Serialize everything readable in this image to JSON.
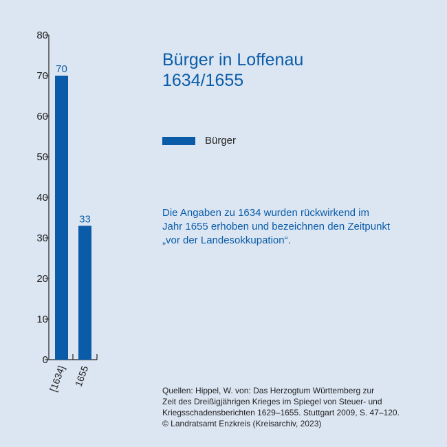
{
  "colors": {
    "background": "#dce6f2",
    "bar": "#0a5ca8",
    "title": "#0a5ca8",
    "axis": "#222222"
  },
  "title_lines": [
    "Bürger in Loffenau",
    "1634/1655"
  ],
  "legend": {
    "label": "Bürger"
  },
  "note_lines": [
    "Die Angaben zu 1634 wurden rückwirkend im",
    "Jahr 1655 erhoben und bezeichnen den Zeitpunkt",
    "„vor der Landesokkupation“."
  ],
  "source_lines": [
    "Quellen: Hippel, W. von: Das Herzogtum Württemberg zur",
    "Zeit des Dreißigjährigen Krieges im Spiegel von Steuer- und",
    "Kriegsschadensberichten 1629–1655. Stuttgart 2009, S. 47–120.",
    "© Landratsamt Enzkreis (Kreisarchiv, 2023)"
  ],
  "chart_data": {
    "type": "bar",
    "title": "Bürger in Loffenau 1634/1655",
    "categories": [
      "[1634]",
      "1655"
    ],
    "series": [
      {
        "name": "Bürger",
        "values": [
          70,
          33
        ]
      }
    ],
    "data_labels": [
      "70",
      "33"
    ],
    "ylim": [
      0,
      80
    ],
    "yticks": [
      0,
      10,
      20,
      30,
      40,
      50,
      60,
      70,
      80
    ],
    "xlabel": "",
    "ylabel": "",
    "grid": false,
    "legend_position": "right"
  }
}
